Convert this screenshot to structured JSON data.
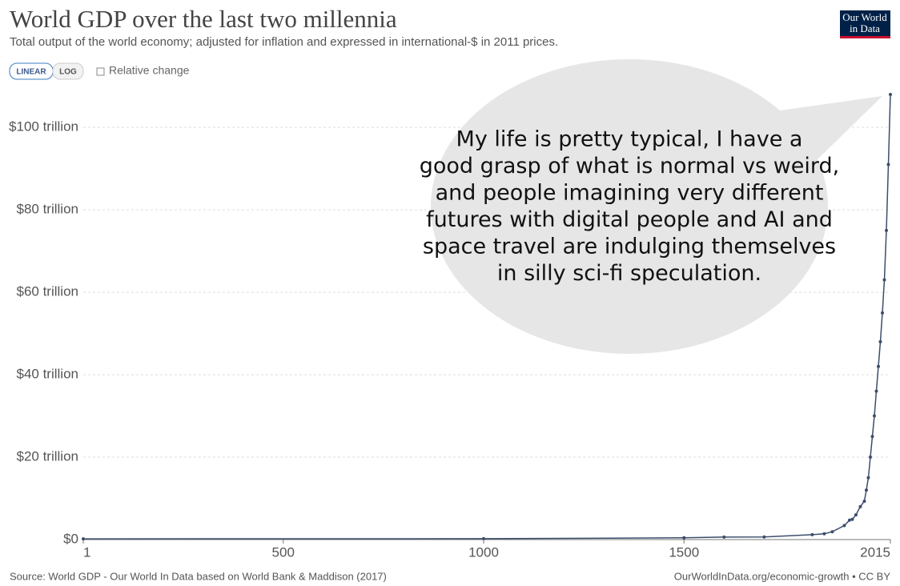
{
  "chart_data": {
    "type": "line",
    "title": "World GDP over the last two millennia",
    "subtitle": "Total output of the world economy; adjusted for inflation and expressed in international-$ in 2011 prices.",
    "logo": [
      "Our World",
      "in Data"
    ],
    "controls": {
      "linear": "LINEAR",
      "log": "LOG",
      "checkbox": "Relative change"
    },
    "annotation": [
      "My life is pretty typical, I have a",
      "good grasp of what is normal vs weird,",
      "and people imagining very different",
      "futures with digital people and AI and",
      "space travel are indulging themselves",
      "in silly sci-fi speculation."
    ],
    "source": "Source: World GDP - Our World In Data based on World Bank & Maddison (2017)",
    "footer_link": "OurWorldInData.org/economic-growth • CC BY",
    "x": [
      1,
      1000,
      1500,
      1600,
      1700,
      1820,
      1850,
      1870,
      1900,
      1913,
      1920,
      1929,
      1940,
      1950,
      1955,
      1960,
      1965,
      1970,
      1975,
      1980,
      1985,
      1990,
      1995,
      2000,
      2005,
      2010,
      2015
    ],
    "series": [
      {
        "name": "World",
        "color": "#3b4e6b",
        "values": [
          0.18,
          0.21,
          0.43,
          0.6,
          0.64,
          1.2,
          1.4,
          1.9,
          3.4,
          4.7,
          4.9,
          6.0,
          8.0,
          9.3,
          12,
          15,
          20,
          25,
          30,
          36,
          42,
          48,
          55,
          63,
          75,
          91,
          108
        ]
      }
    ],
    "xlim": [
      1,
      2015
    ],
    "xticks": [
      1,
      500,
      1000,
      1500,
      2015
    ],
    "ylim": [
      0,
      108
    ],
    "yticks": [
      {
        "value": 0,
        "label": "$0"
      },
      {
        "value": 20,
        "label": "$20 trillion"
      },
      {
        "value": 40,
        "label": "$40 trillion"
      },
      {
        "value": 60,
        "label": "$60 trillion"
      },
      {
        "value": 80,
        "label": "$80 trillion"
      },
      {
        "value": 100,
        "label": "$100 trillion"
      }
    ],
    "grid": true
  }
}
